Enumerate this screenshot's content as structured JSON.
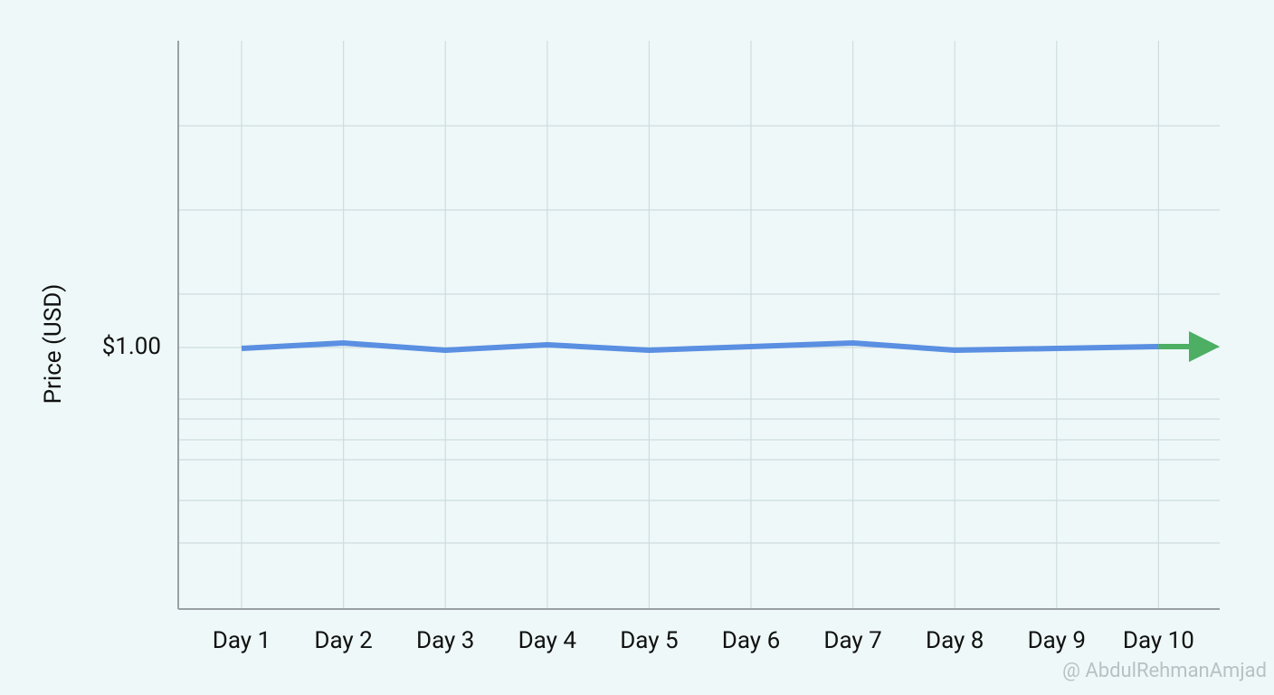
{
  "chart_data": {
    "type": "line",
    "y_label": "Price (USD)",
    "categories": [
      "Day 1",
      "Day 2",
      "Day 3",
      "Day 4",
      "Day 5",
      "Day 6",
      "Day 7",
      "Day 8",
      "Day 9",
      "Day 10"
    ],
    "values": [
      0.9999,
      1.0005,
      0.9997,
      1.0003,
      0.9997,
      1.0001,
      1.0005,
      0.9997,
      0.9999,
      1.0001
    ],
    "color": "#5a8fe2",
    "ylim": [
      0.9711,
      1.0339
    ],
    "yticks": [
      {
        "value": 1,
        "label": "$1.00"
      }
    ],
    "grid": true
  },
  "watermark": "@ AbdulRehmanAmjad"
}
